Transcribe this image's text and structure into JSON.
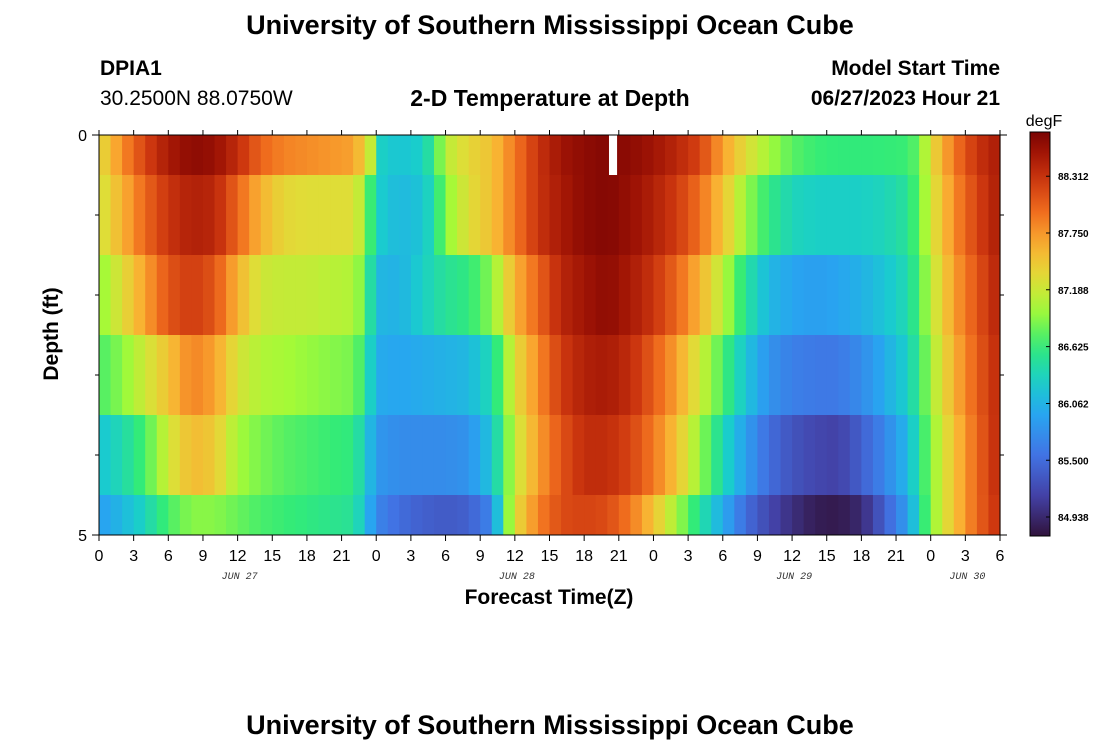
{
  "header": {
    "title": "University of Southern Mississippi Ocean Cube",
    "station": "DPIA1",
    "coords": "30.2500N  88.0750W",
    "subtitle": "2-D Temperature at Depth",
    "model_label": "Model Start Time",
    "model_time": "06/27/2023 Hour 21"
  },
  "footer": {
    "title": "University of Southern Mississippi Ocean Cube"
  },
  "chart_data": {
    "type": "heatmap",
    "title": "2-D Temperature at Depth",
    "xlabel": "Forecast Time(Z)",
    "ylabel": "Depth (ft)",
    "units": "degF",
    "x_tick_labels": [
      "0",
      "3",
      "6",
      "9",
      "12",
      "15",
      "18",
      "21",
      "0",
      "3",
      "6",
      "9",
      "12",
      "15",
      "18",
      "21",
      "0",
      "3",
      "6",
      "9",
      "12",
      "15",
      "18",
      "21",
      "0",
      "3",
      "6"
    ],
    "date_labels": [
      {
        "label": "JUN 27",
        "tick_index": 4
      },
      {
        "label": "JUN 28",
        "tick_index": 12
      },
      {
        "label": "JUN 29",
        "tick_index": 20
      },
      {
        "label": "JUN 30",
        "tick_index": 25
      }
    ],
    "x_hours": [
      0,
      78
    ],
    "y_tick_labels": [
      "0",
      "5"
    ],
    "ylim": [
      0,
      5
    ],
    "y_minor_ticks": [
      1,
      2,
      3,
      4
    ],
    "depth_bands": [
      [
        0,
        0.5
      ],
      [
        0.5,
        1.5
      ],
      [
        1.5,
        2.5
      ],
      [
        2.5,
        3.5
      ],
      [
        3.5,
        4.5
      ],
      [
        4.5,
        5
      ]
    ],
    "missing_cell": {
      "band": 0,
      "hour": 44.5
    },
    "colorbar": {
      "ticks": [
        "88.312",
        "87.750",
        "87.188",
        "86.625",
        "86.062",
        "85.500",
        "84.938"
      ],
      "tick_values": [
        88.312,
        87.75,
        87.188,
        86.625,
        86.062,
        85.5,
        84.938
      ],
      "range": [
        84.75,
        88.75
      ]
    },
    "profiles": [
      [
        [
          0,
          87.3
        ],
        [
          2,
          87.8
        ],
        [
          4,
          88.2
        ],
        [
          6,
          88.5
        ],
        [
          8,
          88.65
        ],
        [
          10,
          88.6
        ],
        [
          12,
          88.35
        ],
        [
          14,
          88.0
        ],
        [
          16,
          87.85
        ],
        [
          18,
          87.8
        ],
        [
          20,
          87.75
        ],
        [
          22,
          87.7
        ],
        [
          23,
          87.4
        ],
        [
          24,
          86.9
        ],
        [
          24.5,
          86.3
        ],
        [
          26,
          86.2
        ],
        [
          28,
          86.3
        ],
        [
          29,
          86.6
        ],
        [
          30,
          87.1
        ],
        [
          32,
          87.35
        ],
        [
          34,
          87.5
        ],
        [
          36,
          87.9
        ],
        [
          38,
          88.3
        ],
        [
          40,
          88.55
        ],
        [
          42,
          88.65
        ],
        [
          44,
          88.7
        ],
        [
          46,
          88.65
        ],
        [
          48,
          88.55
        ],
        [
          50,
          88.4
        ],
        [
          52,
          88.2
        ],
        [
          54,
          87.7
        ],
        [
          56,
          87.3
        ],
        [
          58,
          87.0
        ],
        [
          60,
          86.75
        ],
        [
          62,
          86.65
        ],
        [
          64,
          86.62
        ],
        [
          66,
          86.62
        ],
        [
          68,
          86.63
        ],
        [
          70,
          86.65
        ],
        [
          71,
          86.8
        ],
        [
          72,
          87.3
        ],
        [
          74,
          87.9
        ],
        [
          76,
          88.3
        ],
        [
          78,
          88.5
        ]
      ],
      [
        [
          0,
          87.2
        ],
        [
          2,
          87.6
        ],
        [
          4,
          88.0
        ],
        [
          6,
          88.3
        ],
        [
          8,
          88.45
        ],
        [
          10,
          88.4
        ],
        [
          12,
          88.0
        ],
        [
          14,
          87.6
        ],
        [
          16,
          87.35
        ],
        [
          18,
          87.3
        ],
        [
          20,
          87.3
        ],
        [
          22,
          87.3
        ],
        [
          23,
          87.0
        ],
        [
          24,
          86.3
        ],
        [
          26,
          86.1
        ],
        [
          28,
          86.2
        ],
        [
          29,
          86.45
        ],
        [
          30,
          86.9
        ],
        [
          32,
          87.3
        ],
        [
          34,
          87.5
        ],
        [
          36,
          87.9
        ],
        [
          38,
          88.3
        ],
        [
          40,
          88.5
        ],
        [
          42,
          88.65
        ],
        [
          44,
          88.7
        ],
        [
          46,
          88.6
        ],
        [
          48,
          88.45
        ],
        [
          50,
          88.25
        ],
        [
          52,
          87.95
        ],
        [
          54,
          87.5
        ],
        [
          56,
          86.95
        ],
        [
          58,
          86.6
        ],
        [
          60,
          86.35
        ],
        [
          62,
          86.3
        ],
        [
          64,
          86.3
        ],
        [
          66,
          86.3
        ],
        [
          68,
          86.35
        ],
        [
          70,
          86.5
        ],
        [
          71,
          86.8
        ],
        [
          72,
          87.2
        ],
        [
          74,
          87.8
        ],
        [
          76,
          88.2
        ],
        [
          78,
          88.5
        ]
      ],
      [
        [
          0,
          86.9
        ],
        [
          2,
          87.3
        ],
        [
          4,
          87.7
        ],
        [
          6,
          88.1
        ],
        [
          8,
          88.25
        ],
        [
          10,
          88.1
        ],
        [
          12,
          87.6
        ],
        [
          14,
          87.2
        ],
        [
          16,
          87.15
        ],
        [
          18,
          87.15
        ],
        [
          20,
          87.1
        ],
        [
          22,
          87.05
        ],
        [
          23,
          86.8
        ],
        [
          24,
          86.1
        ],
        [
          26,
          86.05
        ],
        [
          28,
          86.3
        ],
        [
          30,
          86.5
        ],
        [
          32,
          86.6
        ],
        [
          34,
          86.9
        ],
        [
          36,
          87.6
        ],
        [
          38,
          88.0
        ],
        [
          40,
          88.4
        ],
        [
          42,
          88.55
        ],
        [
          44,
          88.65
        ],
        [
          46,
          88.5
        ],
        [
          48,
          88.3
        ],
        [
          50,
          88.0
        ],
        [
          52,
          87.6
        ],
        [
          54,
          87.1
        ],
        [
          56,
          86.5
        ],
        [
          58,
          86.1
        ],
        [
          60,
          85.95
        ],
        [
          62,
          85.9
        ],
        [
          64,
          85.95
        ],
        [
          66,
          86.05
        ],
        [
          68,
          86.2
        ],
        [
          70,
          86.4
        ],
        [
          71,
          86.7
        ],
        [
          72,
          87.1
        ],
        [
          74,
          87.7
        ],
        [
          76,
          88.1
        ],
        [
          78,
          88.45
        ]
      ],
      [
        [
          0,
          86.7
        ],
        [
          2,
          86.9
        ],
        [
          4,
          87.2
        ],
        [
          6,
          87.5
        ],
        [
          8,
          87.85
        ],
        [
          10,
          87.7
        ],
        [
          12,
          87.25
        ],
        [
          14,
          87.05
        ],
        [
          16,
          87.0
        ],
        [
          18,
          86.95
        ],
        [
          20,
          86.9
        ],
        [
          22,
          86.85
        ],
        [
          23,
          86.6
        ],
        [
          24,
          86.0
        ],
        [
          26,
          85.95
        ],
        [
          28,
          86.0
        ],
        [
          30,
          86.05
        ],
        [
          32,
          86.1
        ],
        [
          34,
          86.4
        ],
        [
          36,
          87.3
        ],
        [
          38,
          87.8
        ],
        [
          40,
          88.25
        ],
        [
          42,
          88.45
        ],
        [
          44,
          88.5
        ],
        [
          46,
          88.35
        ],
        [
          48,
          88.05
        ],
        [
          50,
          87.7
        ],
        [
          52,
          87.2
        ],
        [
          54,
          86.7
        ],
        [
          56,
          86.2
        ],
        [
          58,
          85.8
        ],
        [
          60,
          85.65
        ],
        [
          62,
          85.6
        ],
        [
          64,
          85.6
        ],
        [
          66,
          85.75
        ],
        [
          68,
          86.0
        ],
        [
          70,
          86.3
        ],
        [
          71,
          86.6
        ],
        [
          72,
          87.0
        ],
        [
          74,
          87.6
        ],
        [
          76,
          88.05
        ],
        [
          78,
          88.4
        ]
      ],
      [
        [
          0,
          86.2
        ],
        [
          2,
          86.4
        ],
        [
          4,
          86.7
        ],
        [
          6,
          87.2
        ],
        [
          8,
          87.55
        ],
        [
          10,
          87.45
        ],
        [
          12,
          87.0
        ],
        [
          14,
          86.85
        ],
        [
          16,
          86.75
        ],
        [
          18,
          86.7
        ],
        [
          20,
          86.65
        ],
        [
          22,
          86.6
        ],
        [
          23,
          86.3
        ],
        [
          24,
          85.85
        ],
        [
          26,
          85.75
        ],
        [
          28,
          85.75
        ],
        [
          30,
          85.75
        ],
        [
          32,
          85.8
        ],
        [
          34,
          86.2
        ],
        [
          36,
          87.15
        ],
        [
          38,
          87.7
        ],
        [
          40,
          88.1
        ],
        [
          42,
          88.35
        ],
        [
          44,
          88.35
        ],
        [
          46,
          88.2
        ],
        [
          48,
          87.9
        ],
        [
          50,
          87.5
        ],
        [
          52,
          86.95
        ],
        [
          54,
          86.4
        ],
        [
          56,
          85.9
        ],
        [
          58,
          85.5
        ],
        [
          60,
          85.3
        ],
        [
          62,
          85.2
        ],
        [
          64,
          85.15
        ],
        [
          66,
          85.4
        ],
        [
          68,
          85.7
        ],
        [
          70,
          86.1
        ],
        [
          71,
          86.5
        ],
        [
          72,
          86.9
        ],
        [
          74,
          87.5
        ],
        [
          76,
          88.0
        ],
        [
          78,
          88.4
        ]
      ],
      [
        [
          0,
          85.9
        ],
        [
          2,
          86.1
        ],
        [
          4,
          86.35
        ],
        [
          6,
          86.7
        ],
        [
          8,
          86.9
        ],
        [
          10,
          86.9
        ],
        [
          12,
          86.8
        ],
        [
          14,
          86.7
        ],
        [
          16,
          86.65
        ],
        [
          18,
          86.6
        ],
        [
          20,
          86.55
        ],
        [
          22,
          86.5
        ],
        [
          23,
          86.2
        ],
        [
          24,
          85.7
        ],
        [
          26,
          85.5
        ],
        [
          28,
          85.4
        ],
        [
          30,
          85.35
        ],
        [
          32,
          85.4
        ],
        [
          34,
          85.7
        ],
        [
          35,
          86.6
        ],
        [
          36,
          87.3
        ],
        [
          38,
          87.85
        ],
        [
          40,
          88.15
        ],
        [
          42,
          88.2
        ],
        [
          44,
          88.15
        ],
        [
          46,
          87.9
        ],
        [
          48,
          87.5
        ],
        [
          50,
          87.0
        ],
        [
          52,
          86.5
        ],
        [
          54,
          86.0
        ],
        [
          56,
          85.5
        ],
        [
          58,
          85.2
        ],
        [
          60,
          85.0
        ],
        [
          62,
          84.85
        ],
        [
          64,
          84.82
        ],
        [
          66,
          84.95
        ],
        [
          68,
          85.4
        ],
        [
          70,
          85.9
        ],
        [
          71,
          86.4
        ],
        [
          72,
          86.9
        ],
        [
          74,
          87.5
        ],
        [
          76,
          88.0
        ],
        [
          78,
          88.35
        ]
      ]
    ]
  }
}
